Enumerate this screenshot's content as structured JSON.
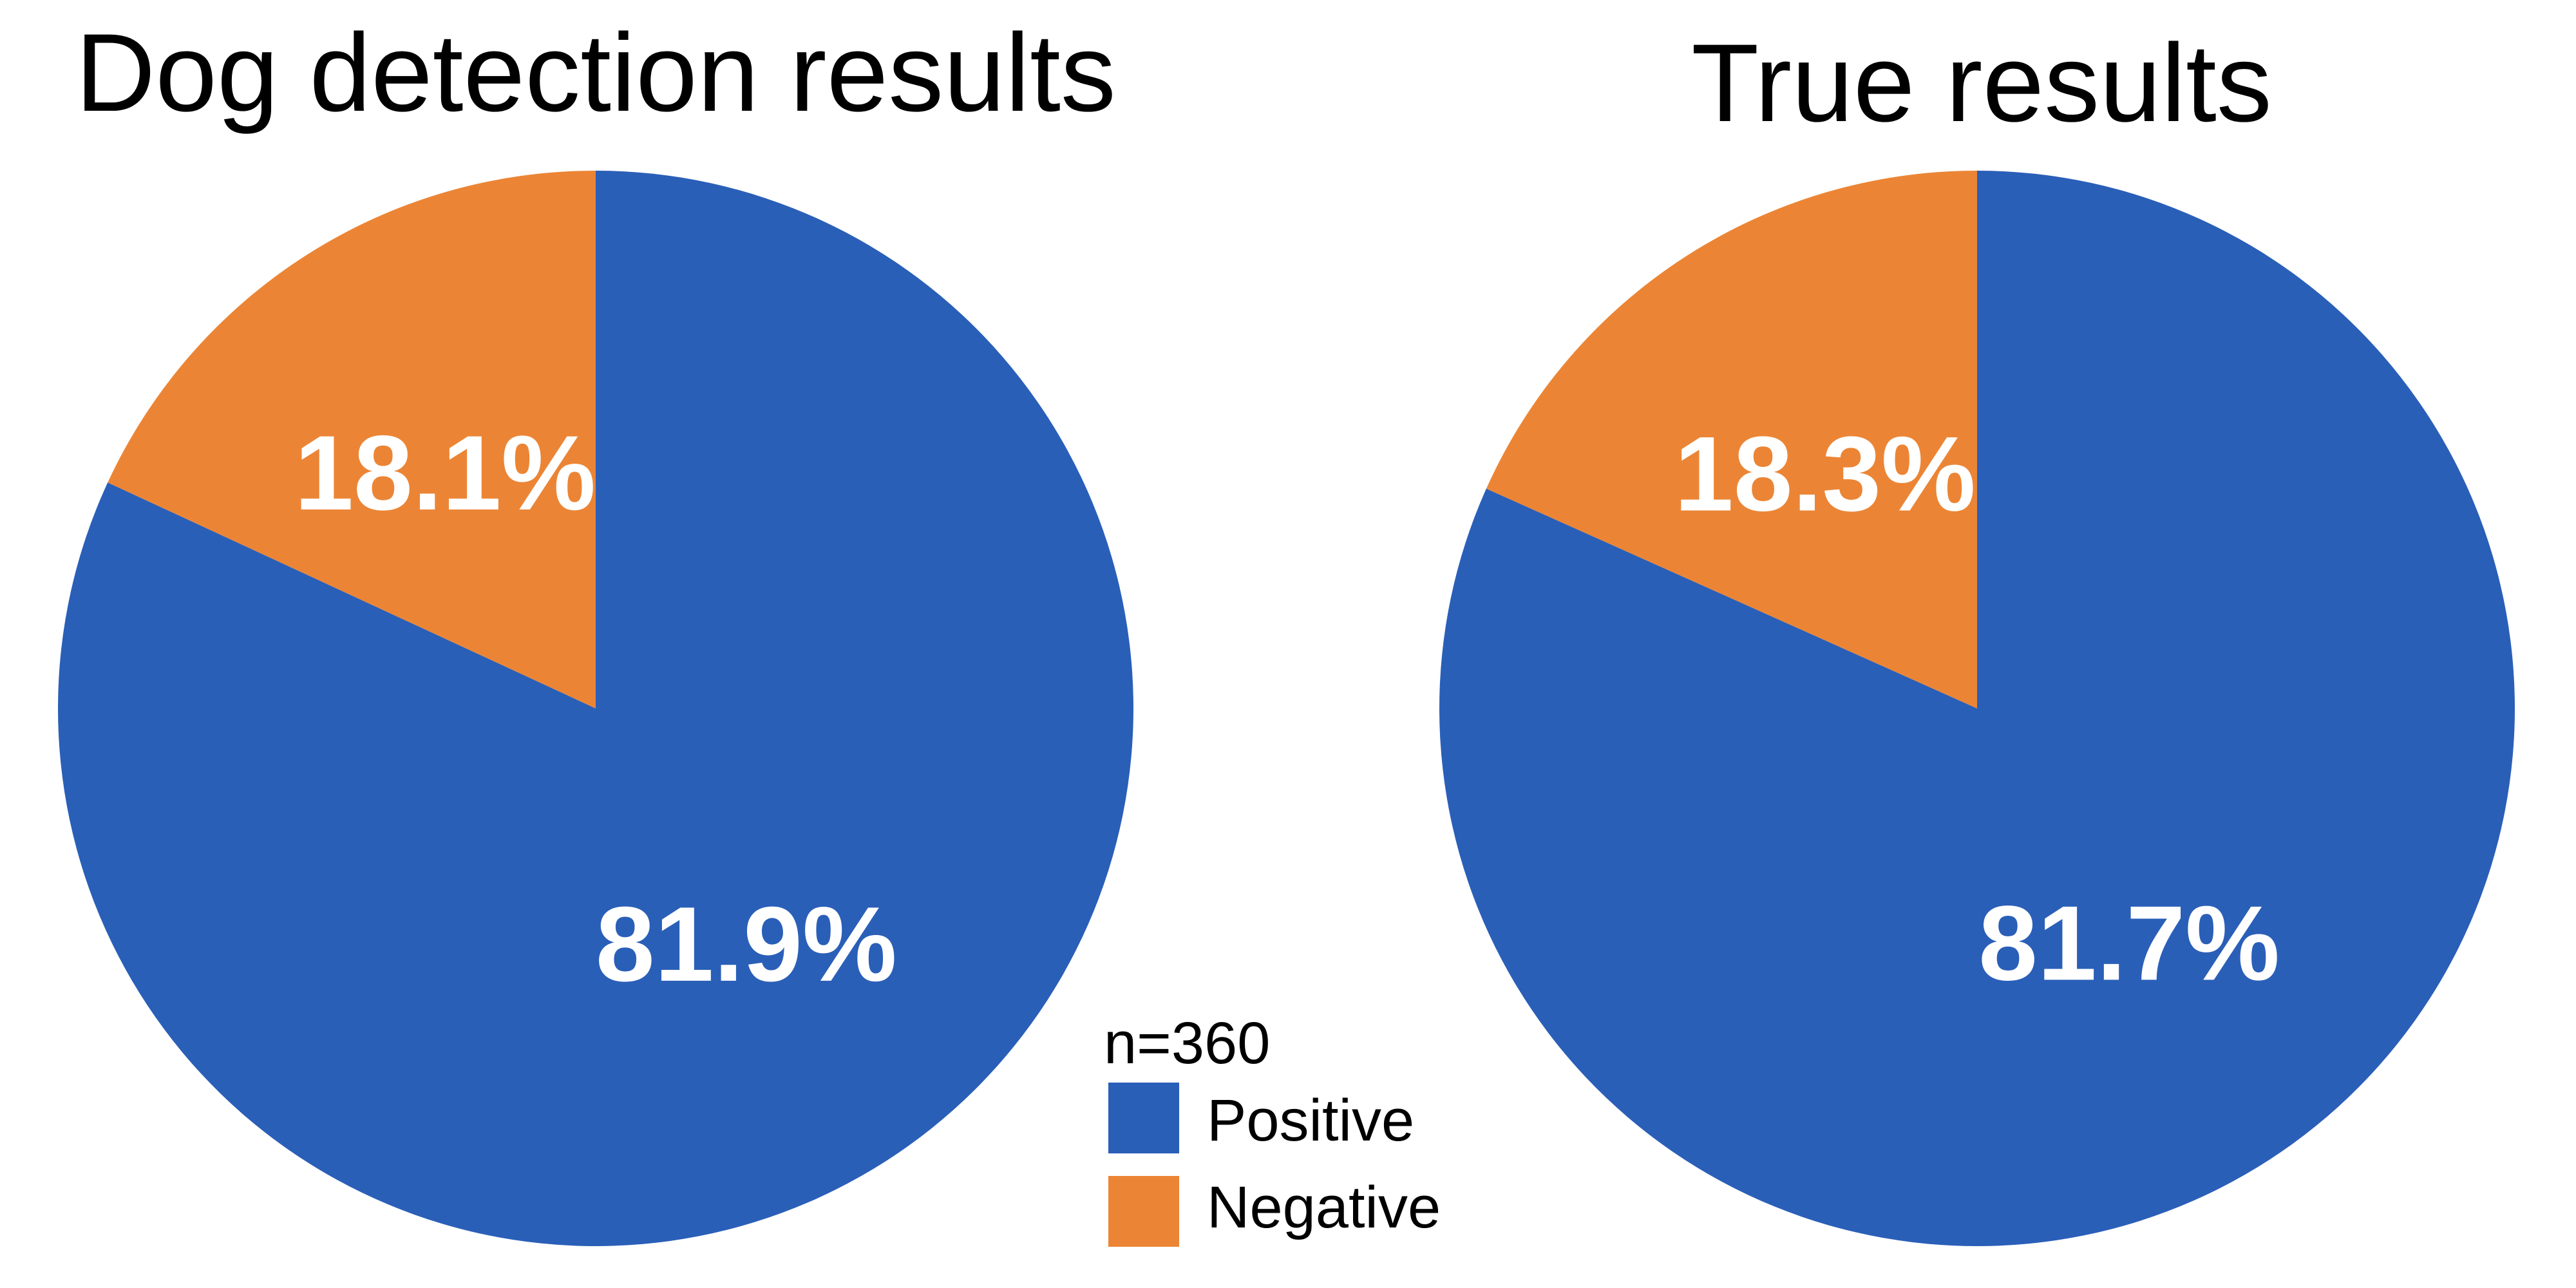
{
  "legend": {
    "title": "n=360",
    "items": [
      {
        "label": "Positive",
        "color": "#2A5FB8"
      },
      {
        "label": "Negative",
        "color": "#EB8535"
      }
    ]
  },
  "chart_data": [
    {
      "type": "pie",
      "title": "Dog detection results",
      "categories": [
        "Positive",
        "Negative"
      ],
      "values": [
        81.9,
        18.1
      ],
      "labels": [
        "81.9%",
        "18.1%"
      ],
      "colors": [
        "#2A5FB8",
        "#EB8535"
      ],
      "start_angle": "12 o'clock, clockwise",
      "legend": "shared, between charts"
    },
    {
      "type": "pie",
      "title": "True results",
      "categories": [
        "Positive",
        "Negative"
      ],
      "values": [
        81.7,
        18.3
      ],
      "labels": [
        "81.7%",
        "18.3%"
      ],
      "colors": [
        "#2A5FB8",
        "#EB8535"
      ],
      "start_angle": "12 o'clock, clockwise",
      "legend": "shared, between charts"
    }
  ]
}
